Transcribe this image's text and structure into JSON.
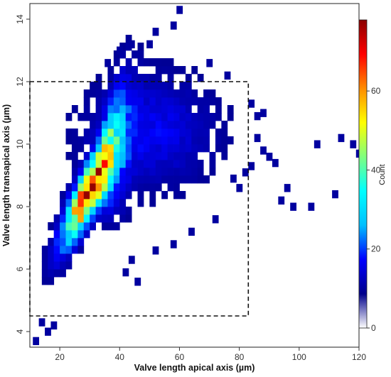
{
  "chart_data": {
    "type": "heatmap",
    "title": "",
    "xlabel": "Valve length apical axis (µm)",
    "ylabel": "Valve length transapical axis (µm)",
    "xlim": [
      10,
      120
    ],
    "ylim": [
      3.5,
      14.5
    ],
    "x_ticks": [
      20,
      40,
      60,
      80,
      100,
      120
    ],
    "y_ticks": [
      4,
      6,
      8,
      10,
      12,
      14
    ],
    "bin_width_x": 2,
    "bin_width_y": 0.25,
    "colorbar": {
      "label": "Count",
      "range": [
        0,
        78
      ],
      "ticks": [
        0,
        20,
        40,
        60
      ],
      "colormap": [
        "#ffffff",
        "#00008b",
        "#0000ff",
        "#00bfff",
        "#00ffff",
        "#7fff7f",
        "#ffff00",
        "#ff8c00",
        "#ff0000",
        "#8b0000"
      ]
    },
    "density_model": {
      "peak_count": 75,
      "peak_x": 30.5,
      "peak_y": 8.6,
      "slope": 0.16,
      "sd_minor": 0.55,
      "sd_major": 5.8
    },
    "outlier_bins": [
      [
        86,
        10.2
      ],
      [
        88,
        9.8
      ],
      [
        90,
        9.6
      ],
      [
        92,
        9.4
      ],
      [
        94,
        8.2
      ],
      [
        96,
        8.6
      ],
      [
        98,
        8.0
      ],
      [
        104,
        8.0
      ],
      [
        106,
        10.0
      ],
      [
        112,
        8.4
      ],
      [
        114,
        10.2
      ],
      [
        118,
        10.0
      ],
      [
        120,
        9.7
      ],
      [
        78,
        8.9
      ],
      [
        80,
        8.6
      ],
      [
        82,
        9.1
      ],
      [
        84,
        9.3
      ],
      [
        72,
        7.6
      ],
      [
        64,
        7.2
      ],
      [
        58,
        6.8
      ],
      [
        52,
        6.6
      ],
      [
        44,
        6.3
      ],
      [
        42,
        5.9
      ],
      [
        46,
        5.6
      ],
      [
        12,
        3.7
      ],
      [
        14,
        4.3
      ],
      [
        16,
        4.0
      ],
      [
        18,
        4.2
      ],
      [
        36,
        12.6
      ],
      [
        40,
        13.0
      ],
      [
        44,
        13.2
      ],
      [
        52,
        13.6
      ],
      [
        58,
        13.8
      ],
      [
        60,
        14.3
      ],
      [
        50,
        13.2
      ],
      [
        70,
        12.6
      ],
      [
        76,
        12.2
      ],
      [
        84,
        11.3
      ],
      [
        86,
        10.9
      ],
      [
        88,
        11.0
      ]
    ],
    "selection_box": {
      "x": [
        10,
        83
      ],
      "y": [
        4.5,
        12
      ]
    },
    "grid": false,
    "legend": "colorbar-right"
  }
}
